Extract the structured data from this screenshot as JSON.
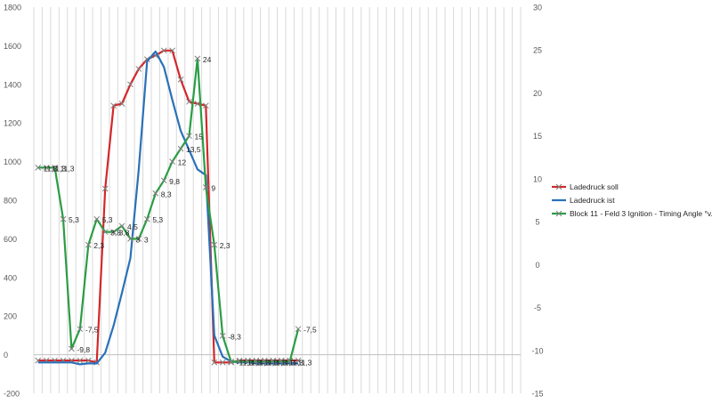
{
  "chart_data": {
    "type": "line",
    "title": "",
    "xlabel": "",
    "ylabel": "",
    "y_left": {
      "lim": [
        -200,
        1800
      ],
      "ticks": [
        -200,
        0,
        200,
        400,
        600,
        800,
        1000,
        1200,
        1400,
        1600,
        1800
      ]
    },
    "y_right": {
      "lim": [
        -15,
        30
      ],
      "ticks": [
        -15,
        -10,
        -5,
        0,
        5,
        10,
        15,
        20,
        25,
        30
      ]
    },
    "grid": {
      "horizontal": false,
      "vertical": true
    },
    "legend_position": "right",
    "x": [
      1,
      2,
      3,
      4,
      5,
      6,
      7,
      8,
      9,
      10,
      11,
      12,
      13,
      14,
      15,
      16,
      17,
      18,
      19,
      20,
      21,
      22,
      23,
      24,
      25,
      26,
      27,
      28,
      29,
      30,
      31,
      32,
      33,
      34,
      35,
      36,
      37,
      38,
      39,
      40,
      41,
      42,
      43,
      44,
      45,
      46,
      47,
      48,
      49,
      50,
      51,
      52,
      53,
      54,
      55,
      56,
      57,
      58
    ],
    "series": [
      {
        "name": "Ladedruck soll",
        "axis": "left",
        "color": "#d4272b",
        "marker": "x",
        "x": [
          1,
          2,
          3,
          4,
          5,
          6,
          7,
          8,
          9,
          10,
          11,
          12,
          13,
          14,
          15,
          16,
          17,
          18,
          19,
          20,
          21,
          22,
          23,
          24,
          25,
          26,
          27,
          28,
          29,
          30,
          31,
          32
        ],
        "values": [
          -30,
          -30,
          -30,
          -30,
          -30,
          -30,
          -30,
          -40,
          860,
          1290,
          1300,
          1400,
          1480,
          1530,
          1550,
          1575,
          1575,
          1425,
          1310,
          1300,
          1290,
          -40,
          -40,
          -40,
          -30,
          -30,
          -30,
          -30,
          -30,
          -30,
          -30,
          -30
        ]
      },
      {
        "name": "Ladedruck ist",
        "axis": "left",
        "color": "#2a71b8",
        "marker": "none",
        "x": [
          1,
          2,
          3,
          4,
          5,
          6,
          7,
          8,
          9,
          10,
          11,
          12,
          13,
          14,
          15,
          16,
          17,
          18,
          19,
          20,
          21,
          22,
          23,
          24,
          25,
          26,
          27,
          28,
          29,
          30,
          31,
          32
        ],
        "values": [
          -40,
          -40,
          -40,
          -40,
          -40,
          -50,
          -45,
          -45,
          10,
          150,
          320,
          500,
          960,
          1520,
          1570,
          1490,
          1320,
          1160,
          1060,
          960,
          930,
          100,
          -10,
          -35,
          -40,
          -40,
          -45,
          -45,
          -45,
          -45,
          -45,
          -45
        ]
      },
      {
        "name": "Block 11 - Feld 3 Ignition - Timing Angle   °v.OT",
        "axis": "right",
        "color": "#2a9d44",
        "marker": "x",
        "x": [
          1,
          2,
          3,
          4,
          5,
          6,
          7,
          8,
          9,
          10,
          11,
          12,
          13,
          14,
          15,
          16,
          17,
          18,
          19,
          20,
          21,
          22,
          23,
          24,
          25,
          26,
          27,
          28,
          29,
          30,
          31,
          32
        ],
        "values": [
          11.3,
          11.3,
          11.3,
          5.3,
          -9.8,
          -7.5,
          2.3,
          5.3,
          3.8,
          3.8,
          4.5,
          3,
          3,
          5.3,
          8.3,
          9.8,
          12,
          13.5,
          15,
          24,
          9,
          2.3,
          -8.3,
          -11.3,
          -11.3,
          -11.3,
          -11.3,
          -11.3,
          -11.3,
          -11.3,
          -11.3,
          -7.5
        ],
        "labels": [
          "11,3",
          "11,3",
          "11,3",
          "5,3",
          "-9,8",
          "-7,5",
          "2,3",
          "5,3",
          "3,8",
          "3,8",
          "4,5",
          "3",
          "3",
          "5,3",
          "8,3",
          "9,8",
          "12",
          "13,5",
          "15",
          "24",
          "9",
          "2,3",
          "-8,3",
          "-11,3",
          "-11,3",
          "-11,3",
          "-11,3",
          "-11,3",
          "-11,3",
          "-11,3",
          "-11,3",
          "-7,5"
        ]
      }
    ]
  }
}
